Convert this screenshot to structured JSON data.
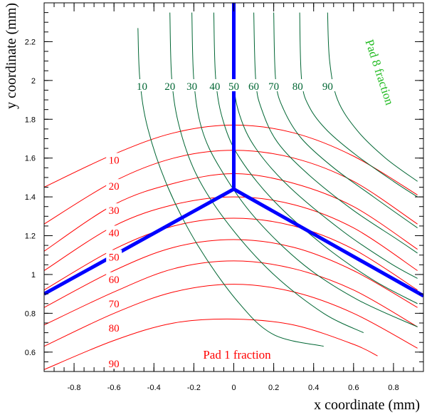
{
  "chart_data": {
    "type": "line",
    "title": "",
    "xlabel": "x coordinate (mm)",
    "ylabel": "y coordinate (mm)",
    "xlim": [
      -0.95,
      0.95
    ],
    "ylim": [
      0.5,
      2.4
    ],
    "grid": false,
    "x_ticks": [
      -0.8,
      -0.6,
      -0.4,
      -0.2,
      0,
      0.2,
      0.4,
      0.6,
      0.8
    ],
    "x_tick_labels": [
      "-0.8",
      "-0.6",
      "-0.4",
      "-0.2",
      "0",
      "0.2",
      "0.4",
      "0.6",
      "0.8"
    ],
    "y_ticks": [
      0.6,
      0.8,
      1.0,
      1.2,
      1.4,
      1.6,
      1.8,
      2.0,
      2.2
    ],
    "y_tick_labels": [
      "0.6",
      "0.8",
      "1",
      "1.2",
      "1.4",
      "1.6",
      "1.8",
      "2",
      "2.2"
    ],
    "colors": {
      "pad1": "#ff0000",
      "pad8": "#006633",
      "boundary": "#0000ff",
      "pad8_title": "#22bb22"
    },
    "annotations": {
      "pad1_title": "Pad 1 fraction",
      "pad8_title": "Pad 8 fraction"
    },
    "pad1_contours": [
      {
        "level": "10",
        "label": "10",
        "label_at": [
          -0.6,
          1.59
        ],
        "points": [
          [
            -0.95,
            1.45
          ],
          [
            -0.6,
            1.62
          ],
          [
            -0.3,
            1.73
          ],
          [
            0,
            1.77
          ],
          [
            0.3,
            1.73
          ],
          [
            0.6,
            1.61
          ],
          [
            0.92,
            1.41
          ]
        ]
      },
      {
        "level": "20",
        "label": "20",
        "label_at": [
          -0.6,
          1.455
        ],
        "points": [
          [
            -0.95,
            1.26
          ],
          [
            -0.6,
            1.48
          ],
          [
            -0.3,
            1.6
          ],
          [
            0,
            1.64
          ],
          [
            0.3,
            1.6
          ],
          [
            0.6,
            1.48
          ],
          [
            0.92,
            1.26
          ]
        ]
      },
      {
        "level": "30",
        "label": "30",
        "label_at": [
          -0.6,
          1.33
        ],
        "points": [
          [
            -0.95,
            1.12
          ],
          [
            -0.6,
            1.36
          ],
          [
            -0.3,
            1.47
          ],
          [
            0,
            1.52
          ],
          [
            0.3,
            1.47
          ],
          [
            0.6,
            1.35
          ],
          [
            0.92,
            1.13
          ]
        ]
      },
      {
        "level": "40",
        "label": "40",
        "label_at": [
          -0.6,
          1.215
        ],
        "points": [
          [
            -0.95,
            1.02
          ],
          [
            -0.6,
            1.25
          ],
          [
            -0.3,
            1.36
          ],
          [
            0,
            1.4
          ],
          [
            0.3,
            1.36
          ],
          [
            0.6,
            1.24
          ],
          [
            0.92,
            1.02
          ]
        ]
      },
      {
        "level": "50",
        "label": "50",
        "label_at": [
          -0.6,
          1.09
        ],
        "points": [
          [
            -0.95,
            0.92
          ],
          [
            -0.6,
            1.13
          ],
          [
            -0.3,
            1.25
          ],
          [
            0,
            1.29
          ],
          [
            0.3,
            1.25
          ],
          [
            0.6,
            1.13
          ],
          [
            0.92,
            0.92
          ]
        ]
      },
      {
        "level": "60",
        "label": "60",
        "label_at": [
          -0.6,
          0.975
        ],
        "points": [
          [
            -0.95,
            0.83
          ],
          [
            -0.6,
            1.02
          ],
          [
            -0.3,
            1.14
          ],
          [
            0,
            1.18
          ],
          [
            0.3,
            1.14
          ],
          [
            0.6,
            1.02
          ],
          [
            0.92,
            0.83
          ]
        ]
      },
      {
        "level": "70",
        "label": "70",
        "label_at": [
          -0.6,
          0.85
        ],
        "points": [
          [
            -0.95,
            0.74
          ],
          [
            -0.6,
            0.91
          ],
          [
            -0.3,
            1.03
          ],
          [
            0,
            1.07
          ],
          [
            0.3,
            1.03
          ],
          [
            0.6,
            0.92
          ],
          [
            0.92,
            0.73
          ]
        ]
      },
      {
        "level": "80",
        "label": "80",
        "label_at": [
          -0.6,
          0.725
        ],
        "points": [
          [
            -0.95,
            0.63
          ],
          [
            -0.6,
            0.8
          ],
          [
            -0.3,
            0.91
          ],
          [
            0,
            0.95
          ],
          [
            0.3,
            0.91
          ],
          [
            0.6,
            0.8
          ],
          [
            0.92,
            0.62
          ]
        ]
      },
      {
        "level": "90",
        "label": "90",
        "label_at": [
          -0.6,
          0.54
        ],
        "points": [
          [
            -0.95,
            0.51
          ],
          [
            -0.6,
            0.66
          ],
          [
            -0.3,
            0.75
          ],
          [
            0,
            0.77
          ],
          [
            0.3,
            0.74
          ],
          [
            0.6,
            0.64
          ],
          [
            0.72,
            0.58
          ]
        ]
      }
    ],
    "pad8_contours": [
      {
        "level": "10",
        "label": "10",
        "label_at": [
          -0.46,
          1.97
        ],
        "points": [
          [
            -0.48,
            2.27
          ],
          [
            -0.47,
            2.0
          ],
          [
            -0.43,
            1.75
          ],
          [
            -0.33,
            1.45
          ],
          [
            -0.18,
            1.15
          ],
          [
            0.02,
            0.86
          ],
          [
            0.2,
            0.69
          ],
          [
            0.45,
            0.63
          ]
        ]
      },
      {
        "level": "20",
        "label": "20",
        "label_at": [
          -0.32,
          1.97
        ],
        "points": [
          [
            -0.32,
            2.35
          ],
          [
            -0.31,
            2.0
          ],
          [
            -0.27,
            1.75
          ],
          [
            -0.18,
            1.5
          ],
          [
            -0.02,
            1.25
          ],
          [
            0.2,
            1.0
          ],
          [
            0.45,
            0.8
          ],
          [
            0.65,
            0.7
          ]
        ]
      },
      {
        "level": "30",
        "label": "30",
        "label_at": [
          -0.21,
          1.97
        ],
        "points": [
          [
            -0.21,
            2.35
          ],
          [
            -0.2,
            2.0
          ],
          [
            -0.16,
            1.75
          ],
          [
            -0.07,
            1.55
          ],
          [
            0.1,
            1.3
          ],
          [
            0.35,
            1.05
          ],
          [
            0.62,
            0.87
          ],
          [
            0.92,
            0.73
          ]
        ]
      },
      {
        "level": "40",
        "label": "40",
        "label_at": [
          -0.095,
          1.97
        ],
        "points": [
          [
            -0.1,
            2.35
          ],
          [
            -0.09,
            2.0
          ],
          [
            -0.05,
            1.78
          ],
          [
            0.03,
            1.6
          ],
          [
            0.2,
            1.38
          ],
          [
            0.45,
            1.15
          ],
          [
            0.7,
            0.97
          ],
          [
            0.92,
            0.85
          ]
        ]
      },
      {
        "level": "50",
        "label": "50",
        "label_at": [
          0.0,
          1.97
        ],
        "points": [
          [
            0.0,
            2.35
          ],
          [
            0.0,
            2.0
          ],
          [
            0.03,
            1.82
          ],
          [
            0.11,
            1.65
          ],
          [
            0.28,
            1.45
          ],
          [
            0.55,
            1.22
          ],
          [
            0.78,
            1.06
          ],
          [
            0.92,
            0.98
          ]
        ]
      },
      {
        "level": "60",
        "label": "60",
        "label_at": [
          0.1,
          1.97
        ],
        "points": [
          [
            0.1,
            2.35
          ],
          [
            0.11,
            2.0
          ],
          [
            0.14,
            1.85
          ],
          [
            0.22,
            1.68
          ],
          [
            0.38,
            1.51
          ],
          [
            0.6,
            1.33
          ],
          [
            0.82,
            1.18
          ],
          [
            0.92,
            1.11
          ]
        ]
      },
      {
        "level": "70",
        "label": "70",
        "label_at": [
          0.2,
          1.97
        ],
        "points": [
          [
            0.2,
            2.35
          ],
          [
            0.21,
            2.0
          ],
          [
            0.25,
            1.85
          ],
          [
            0.34,
            1.7
          ],
          [
            0.5,
            1.55
          ],
          [
            0.7,
            1.4
          ],
          [
            0.92,
            1.24
          ]
        ]
      },
      {
        "level": "80",
        "label": "80",
        "label_at": [
          0.32,
          1.97
        ],
        "points": [
          [
            0.33,
            2.35
          ],
          [
            0.34,
            2.0
          ],
          [
            0.38,
            1.86
          ],
          [
            0.47,
            1.74
          ],
          [
            0.62,
            1.61
          ],
          [
            0.8,
            1.48
          ],
          [
            0.92,
            1.4
          ]
        ]
      },
      {
        "level": "90",
        "label": "90",
        "label_at": [
          0.47,
          1.97
        ],
        "points": [
          [
            0.47,
            2.35
          ],
          [
            0.48,
            2.1
          ],
          [
            0.52,
            1.9
          ],
          [
            0.62,
            1.74
          ],
          [
            0.76,
            1.6
          ],
          [
            0.92,
            1.48
          ]
        ]
      }
    ],
    "pad_boundaries": [
      {
        "name": "vertical-boundary",
        "points": [
          [
            0.0,
            2.4
          ],
          [
            0.0,
            1.44
          ]
        ]
      },
      {
        "name": "left-boundary",
        "points": [
          [
            0.0,
            1.44
          ],
          [
            -0.95,
            0.9
          ]
        ]
      },
      {
        "name": "right-boundary",
        "points": [
          [
            0.0,
            1.44
          ],
          [
            0.95,
            0.89
          ]
        ]
      }
    ]
  }
}
